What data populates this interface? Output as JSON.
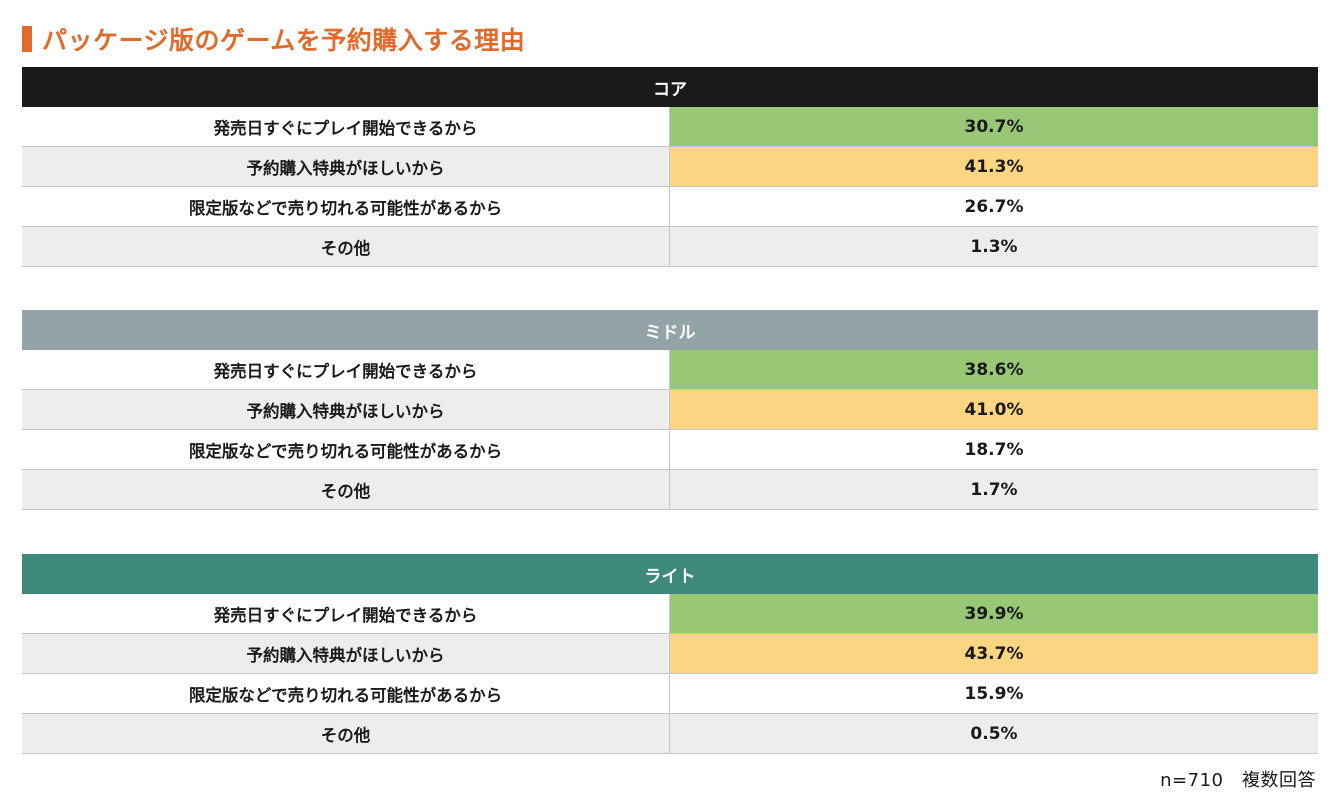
{
  "title": "パッケージ版のゲームを予約購入する理由",
  "colors": {
    "title": "#e06b2c",
    "highlight_first": "#98c775",
    "highlight_second": "#fbd582"
  },
  "chart_data": [
    {
      "type": "table",
      "segment": "コア",
      "header_color": "#1a1a1a",
      "categories": [
        "発売日すぐにプレイ開始できるから",
        "予約購入特典がほしいから",
        "限定版などで売り切れる可能性があるから",
        "その他"
      ],
      "values": [
        "30.7%",
        "41.3%",
        "26.7%",
        "1.3%"
      ]
    },
    {
      "type": "table",
      "segment": "ミドル",
      "header_color": "#94a3a7",
      "categories": [
        "発売日すぐにプレイ開始できるから",
        "予約購入特典がほしいから",
        "限定版などで売り切れる可能性があるから",
        "その他"
      ],
      "values": [
        "38.6%",
        "41.0%",
        "18.7%",
        "1.7%"
      ]
    },
    {
      "type": "table",
      "segment": "ライト",
      "header_color": "#3d8a7c",
      "categories": [
        "発売日すぐにプレイ開始できるから",
        "予約購入特典がほしいから",
        "限定版などで売り切れる可能性があるから",
        "その他"
      ],
      "values": [
        "39.9%",
        "43.7%",
        "15.9%",
        "0.5%"
      ]
    }
  ],
  "footnote": "n=710　複数回答"
}
